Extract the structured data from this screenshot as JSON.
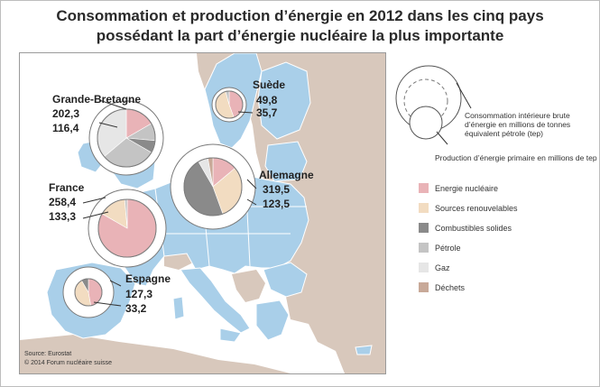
{
  "title": {
    "line1": "Consommation et production d’énergie en 2012 dans les cinq pays",
    "line2": "possédant la part d’énergie nucléaire la plus importante"
  },
  "colors": {
    "sea": "#ffffff",
    "eu_land": "#a9cfe9",
    "other_land": "#d8c8bc",
    "border": "#ffffff",
    "nucleaire": "#e9b3b7",
    "renouvelables": "#f2dcc1",
    "combustibles_solides": "#8a8a8a",
    "petrole": "#c4c4c4",
    "gaz": "#e6e6e6",
    "dechets": "#c8a998"
  },
  "countries": [
    {
      "id": "suede",
      "name": "Suède",
      "consumption": "49,8",
      "production": "35,7"
    },
    {
      "id": "grande-bretagne",
      "name": "Grande-Bretagne",
      "consumption": "202,3",
      "production": "116,4"
    },
    {
      "id": "allemagne",
      "name": "Allemagne",
      "consumption": "319,5",
      "production": "123,5"
    },
    {
      "id": "france",
      "name": "France",
      "consumption": "258,4",
      "production": "133,3"
    },
    {
      "id": "espagne",
      "name": "Espagne",
      "consumption": "127,3",
      "production": "33,2"
    }
  ],
  "legend": {
    "consumption_label": "Consommation intérieure brute d’énergie en millions de tonnes équivalent pétrole (tep)",
    "production_label": "Production d’énergie primaire en millions de tep",
    "items": [
      {
        "key": "nucleaire",
        "label": "Energie nucléaire",
        "color": "#e9b3b7"
      },
      {
        "key": "renouvelables",
        "label": "Sources renouvelables",
        "color": "#f2dcc1"
      },
      {
        "key": "combustibles_solides",
        "label": "Combustibles solides",
        "color": "#8a8a8a"
      },
      {
        "key": "petrole",
        "label": "Pétrole",
        "color": "#c4c4c4"
      },
      {
        "key": "gaz",
        "label": "Gaz",
        "color": "#e6e6e6"
      },
      {
        "key": "dechets",
        "label": "Déchets",
        "color": "#c8a998"
      }
    ]
  },
  "source": {
    "line1": "Source: Eurostat",
    "line2": "© 2014  Forum nucléaire suisse"
  }
}
